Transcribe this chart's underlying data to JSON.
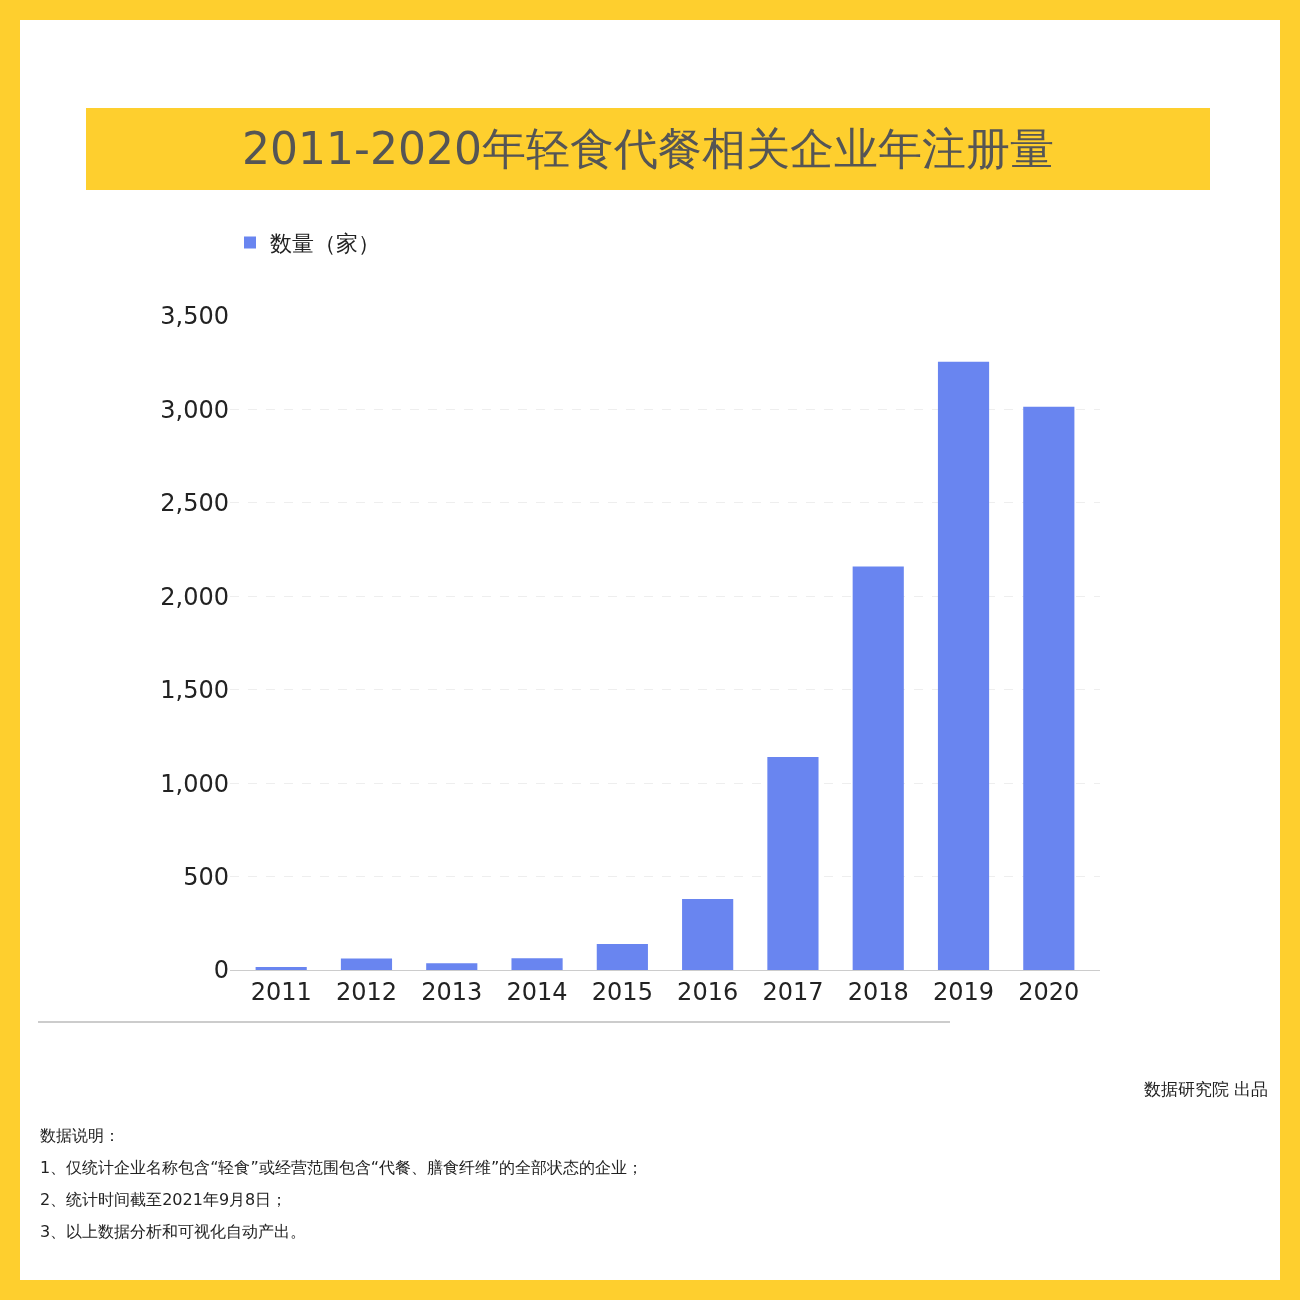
{
  "chart_data": {
    "type": "bar",
    "title": "2011-2020年轻食代餐相关企业年注册量",
    "categories": [
      "2011",
      "2012",
      "2013",
      "2014",
      "2015",
      "2016",
      "2017",
      "2018",
      "2019",
      "2020"
    ],
    "series": [
      {
        "name": "数量（家）",
        "color": "#6985f0",
        "values": [
          16,
          62,
          36,
          63,
          139,
          380,
          1140,
          2160,
          3255,
          3015
        ]
      }
    ],
    "ylim": [
      0,
      3500
    ],
    "yticks": [
      0,
      {
        "value": 500,
        "label": "500"
      },
      {
        "value": 1000,
        "label": "1,000"
      },
      {
        "value": 1500,
        "label": "1,500"
      },
      {
        "value": 2000,
        "label": "2,000"
      },
      {
        "value": 2500,
        "label": "2,500"
      },
      {
        "value": 3000,
        "label": "3,000"
      },
      {
        "value": 3500,
        "label": "3,500"
      }
    ],
    "grid": "y",
    "legend": "top left",
    "annotations": [
      "数据说明：",
      "1、仅统计企业名称包含“轻食”或经营范围包含“代餐、膳食纤维”的全部状态的企业；",
      "2、统计时间截至2021年9月8日；",
      "3、以上数据分析和可视化自动产出。",
      "数据研究院 出品"
    ]
  }
}
